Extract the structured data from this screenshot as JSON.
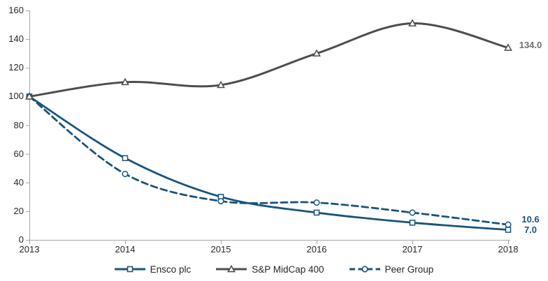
{
  "chart_data": {
    "type": "line",
    "title": "",
    "xlabel": "",
    "ylabel": "",
    "x": [
      "2013",
      "2014",
      "2015",
      "2016",
      "2017",
      "2018"
    ],
    "y_ticks": [
      0,
      20,
      40,
      60,
      80,
      100,
      120,
      140,
      160
    ],
    "ylim": [
      0,
      160
    ],
    "grid": false,
    "smoothed": true,
    "legend_position": "bottom",
    "series": [
      {
        "name": "Ensco plc",
        "slug": "ensco-plc",
        "values": [
          100,
          57,
          30,
          19,
          12,
          7.0
        ],
        "color": "#19547C",
        "line_style": "solid",
        "marker": "square",
        "end_label": "7.0",
        "end_label_color": "#19547C"
      },
      {
        "name": "S&P MidCap 400",
        "slug": "sp-midcap-400",
        "values": [
          100,
          110,
          108,
          130,
          151,
          134.0
        ],
        "color": "#4D4D4D",
        "line_style": "solid",
        "marker": "triangle",
        "end_label": "134.0",
        "end_label_color": "#6E6E6E"
      },
      {
        "name": "Peer Group",
        "slug": "peer-group",
        "values": [
          100,
          46,
          27,
          26,
          19,
          10.6
        ],
        "color": "#19547C",
        "line_style": "dashed",
        "marker": "circle",
        "end_label": "10.6",
        "end_label_color": "#19547C"
      }
    ],
    "axis_color": "#A6A6A6",
    "tick_label_color": "#262626"
  }
}
